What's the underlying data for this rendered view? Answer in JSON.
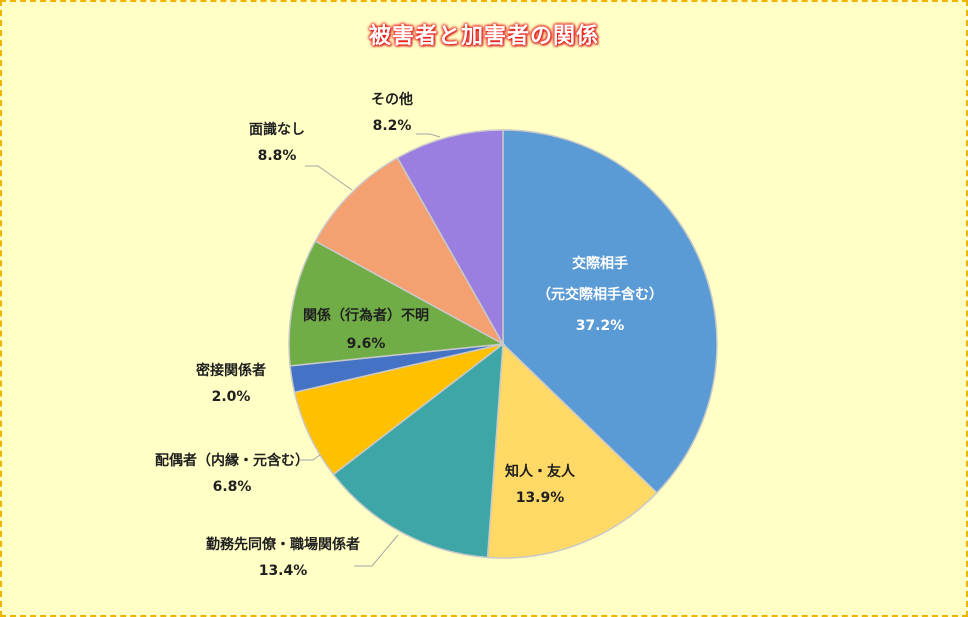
{
  "chart_data": {
    "type": "pie",
    "title": "被害者と加害者の関係",
    "slices": [
      {
        "label_lines": [
          "交際相手",
          "（元交際相手含む）"
        ],
        "value": 37.2,
        "value_label": "37.2%",
        "color": "#5b9bd5"
      },
      {
        "label_lines": [
          "知人・友人"
        ],
        "value": 13.9,
        "value_label": "13.9%",
        "color": "#ffd966"
      },
      {
        "label_lines": [
          "勤務先同僚・職場関係者"
        ],
        "value": 13.4,
        "value_label": "13.4%",
        "color": "#3ea6a6"
      },
      {
        "label_lines": [
          "配偶者（内縁・元含む）"
        ],
        "value": 6.8,
        "value_label": "6.8%",
        "color": "#ffc000"
      },
      {
        "label_lines": [
          "密接関係者"
        ],
        "value": 2.0,
        "value_label": "2.0%",
        "color": "#4472c4"
      },
      {
        "label_lines": [
          "関係（行為者）不明"
        ],
        "value": 9.6,
        "value_label": "9.6%",
        "color": "#70ad47"
      },
      {
        "label_lines": [
          "面識なし"
        ],
        "value": 8.8,
        "value_label": "8.8%",
        "color": "#f4a070"
      },
      {
        "label_lines": [
          "その他"
        ],
        "value": 8.2,
        "value_label": "8.2%",
        "color": "#9b7fe0"
      }
    ],
    "start_angle_deg": 0,
    "direction": "clockwise"
  }
}
